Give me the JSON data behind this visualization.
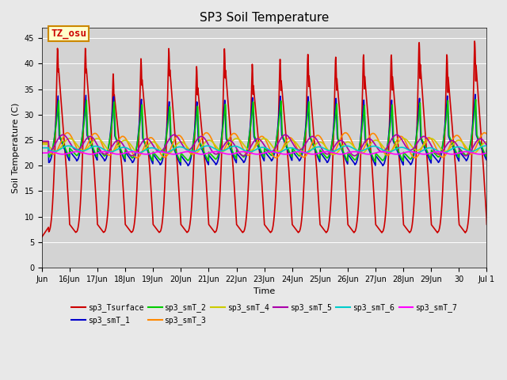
{
  "title": "SP3 Soil Temperature",
  "xlabel": "Time",
  "ylabel": "Soil Temperature (C)",
  "ylim": [
    0,
    47
  ],
  "yticks": [
    0,
    5,
    10,
    15,
    20,
    25,
    30,
    35,
    40,
    45
  ],
  "background_color": "#e8e8e8",
  "plot_bg_color": "#d3d3d3",
  "annotation_text": "TZ_osu",
  "annotation_bg": "#ffffcc",
  "annotation_border": "#cc8800",
  "series": [
    {
      "label": "sp3_Tsurface",
      "color": "#cc0000",
      "lw": 1.2
    },
    {
      "label": "sp3_smT_1",
      "color": "#0000cc",
      "lw": 1.2
    },
    {
      "label": "sp3_smT_2",
      "color": "#00cc00",
      "lw": 1.2
    },
    {
      "label": "sp3_smT_3",
      "color": "#ff8800",
      "lw": 1.2
    },
    {
      "label": "sp3_smT_4",
      "color": "#cccc00",
      "lw": 1.2
    },
    {
      "label": "sp3_smT_5",
      "color": "#aa00aa",
      "lw": 1.2
    },
    {
      "label": "sp3_smT_6",
      "color": "#00cccc",
      "lw": 1.2
    },
    {
      "label": "sp3_smT_7",
      "color": "#ff00ff",
      "lw": 1.2
    }
  ],
  "xtick_labels": [
    "Jun",
    "16Jun",
    "17Jun",
    "18Jun",
    "19Jun",
    "20Jun",
    "21Jun",
    "22Jun",
    "23Jun",
    "24Jun",
    "25Jun",
    "26Jun",
    "27Jun",
    "28Jun",
    "29Jun",
    "30",
    "Jul 1"
  ],
  "n_days": 16,
  "dt_hours": 0.25
}
